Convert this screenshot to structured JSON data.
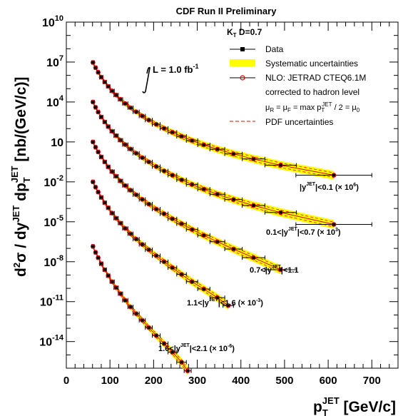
{
  "chart_data": {
    "type": "scatter",
    "title": "CDF Run II Preliminary",
    "xlabel": "p_T^JET [GeV/c]",
    "ylabel": "d²σ / dy^JET dp_T^JET [nb/(GeV/c)]",
    "xlim": [
      0,
      760
    ],
    "ylim_log10": [
      -16,
      10
    ],
    "yscale": "log",
    "x_ticks": [
      "0",
      "100",
      "200",
      "300",
      "400",
      "500",
      "600",
      "700"
    ],
    "y_ticks": [
      {
        "exp": 10,
        "label": "10",
        "sup": "10"
      },
      {
        "exp": 7,
        "label": "10",
        "sup": "7"
      },
      {
        "exp": 4,
        "label": "10",
        "sup": "4"
      },
      {
        "exp": 1,
        "label": "10",
        "sup": ""
      },
      {
        "exp": -2,
        "label": "10",
        "sup": "-2"
      },
      {
        "exp": -5,
        "label": "10",
        "sup": "-5"
      },
      {
        "exp": -8,
        "label": "10",
        "sup": "-8"
      },
      {
        "exp": -11,
        "label": "10",
        "sup": "-11"
      },
      {
        "exp": -14,
        "label": "10",
        "sup": "-14"
      }
    ],
    "luminosity": {
      "prefix": "L = 1.0 fb",
      "sup": "-1"
    },
    "legend": {
      "header": {
        "main": "K",
        "sub": "T",
        "rest": "  D=0.7"
      },
      "items": [
        "Data",
        "Systematic uncertainties",
        "NLO: JETRAD CTEQ6.1M",
        "corrected to hadron level",
        "μ_R = μ_F = max p_T^JET / 2 = μ_0",
        "PDF uncertainties"
      ]
    },
    "colors": {
      "data": "#000000",
      "systematic": "#ffff00",
      "nlo": "#dd0000",
      "pdf": "#ff0000"
    },
    "series": [
      {
        "label": {
          "pre": "|y",
          "sup": "JET",
          "post": "|<0.1 (× 10",
          "post_sup": "6",
          "end": ")"
        },
        "x": [
          61,
          67,
          73,
          80,
          88,
          96,
          105,
          114,
          124,
          135,
          147,
          160,
          174,
          189,
          206,
          224,
          243,
          264,
          288,
          315,
          346,
          383,
          429,
          491,
          613
        ],
        "xerr": [
          3,
          3,
          3,
          4,
          4,
          4,
          5,
          5,
          5,
          6,
          6,
          7,
          7,
          8,
          9,
          9,
          10,
          11,
          13,
          14,
          17,
          20,
          26,
          36,
          87
        ],
        "log10y": [
          6.97,
          6.58,
          6.23,
          5.86,
          5.5,
          5.17,
          4.83,
          4.52,
          4.2,
          3.88,
          3.57,
          3.26,
          2.95,
          2.64,
          2.32,
          2.02,
          1.72,
          1.42,
          1.1,
          0.78,
          0.45,
          0.1,
          -0.28,
          -0.75,
          -1.5
        ]
      },
      {
        "label": {
          "pre": "0.1<|y",
          "sup": "JET",
          "post": "|<0.7 (× 10",
          "post_sup": "3",
          "end": ")"
        },
        "x": [
          61,
          67,
          73,
          80,
          88,
          96,
          105,
          114,
          124,
          135,
          147,
          160,
          174,
          189,
          206,
          224,
          243,
          264,
          288,
          315,
          346,
          383,
          429,
          491,
          613
        ],
        "xerr": [
          3,
          3,
          3,
          4,
          4,
          4,
          5,
          5,
          5,
          6,
          6,
          7,
          7,
          8,
          9,
          9,
          10,
          11,
          13,
          14,
          17,
          20,
          26,
          36,
          87
        ],
        "log10y": [
          4.0,
          3.6,
          3.25,
          2.87,
          2.5,
          2.15,
          1.8,
          1.47,
          1.13,
          0.8,
          0.47,
          0.15,
          -0.18,
          -0.5,
          -0.85,
          -1.18,
          -1.5,
          -1.85,
          -2.2,
          -2.55,
          -2.93,
          -3.33,
          -3.78,
          -4.3,
          -5.2
        ]
      },
      {
        "label": {
          "pre": "0.7<|y",
          "sup": "JET",
          "post": "|<1.1",
          "post_sup": "",
          "end": ""
        },
        "x": [
          61,
          67,
          73,
          80,
          88,
          96,
          105,
          114,
          124,
          135,
          147,
          160,
          174,
          189,
          206,
          224,
          243,
          264,
          288,
          315,
          346,
          383,
          429,
          491
        ],
        "xerr": [
          3,
          3,
          3,
          4,
          4,
          4,
          5,
          5,
          5,
          6,
          6,
          7,
          7,
          8,
          9,
          9,
          10,
          11,
          13,
          14,
          17,
          20,
          26,
          36
        ],
        "log10y": [
          1.0,
          0.6,
          0.25,
          -0.13,
          -0.5,
          -0.87,
          -1.23,
          -1.58,
          -1.93,
          -2.28,
          -2.63,
          -2.97,
          -3.32,
          -3.67,
          -4.05,
          -4.4,
          -4.78,
          -5.15,
          -5.58,
          -6.02,
          -6.5,
          -7.05,
          -7.7,
          -8.6
        ]
      },
      {
        "label": {
          "pre": "1.1<|y",
          "sup": "JET",
          "post": "|<1.6 (× 10",
          "post_sup": "-3",
          "end": ")"
        },
        "x": [
          61,
          67,
          73,
          80,
          88,
          96,
          105,
          114,
          124,
          135,
          147,
          160,
          174,
          189,
          206,
          224,
          243,
          264,
          288,
          315,
          346,
          371
        ],
        "xerr": [
          3,
          3,
          3,
          4,
          4,
          4,
          5,
          5,
          5,
          6,
          6,
          7,
          7,
          8,
          9,
          9,
          10,
          11,
          13,
          14,
          17,
          12
        ],
        "log10y": [
          -2.0,
          -2.4,
          -2.77,
          -3.17,
          -3.57,
          -3.95,
          -4.35,
          -4.73,
          -5.1,
          -5.5,
          -5.9,
          -6.3,
          -6.7,
          -7.1,
          -7.55,
          -8.0,
          -8.45,
          -8.95,
          -9.5,
          -10.05,
          -10.7,
          -11.3
        ]
      },
      {
        "label": {
          "pre": "1.6<|y",
          "sup": "JET",
          "post": "|<2.1 (× 10",
          "post_sup": "-6",
          "end": ")"
        },
        "x": [
          61,
          67,
          73,
          80,
          88,
          96,
          105,
          114,
          124,
          135,
          147,
          160,
          174,
          189,
          206,
          224,
          243,
          264,
          278
        ],
        "xerr": [
          3,
          3,
          3,
          4,
          4,
          4,
          5,
          5,
          5,
          6,
          6,
          7,
          7,
          8,
          9,
          9,
          10,
          11,
          8
        ],
        "log10y": [
          -6.85,
          -7.3,
          -7.7,
          -8.15,
          -8.6,
          -9.05,
          -9.5,
          -9.95,
          -10.4,
          -10.9,
          -11.4,
          -11.9,
          -12.4,
          -12.95,
          -13.55,
          -14.15,
          -14.8,
          -15.55,
          -16.2
        ]
      }
    ]
  }
}
